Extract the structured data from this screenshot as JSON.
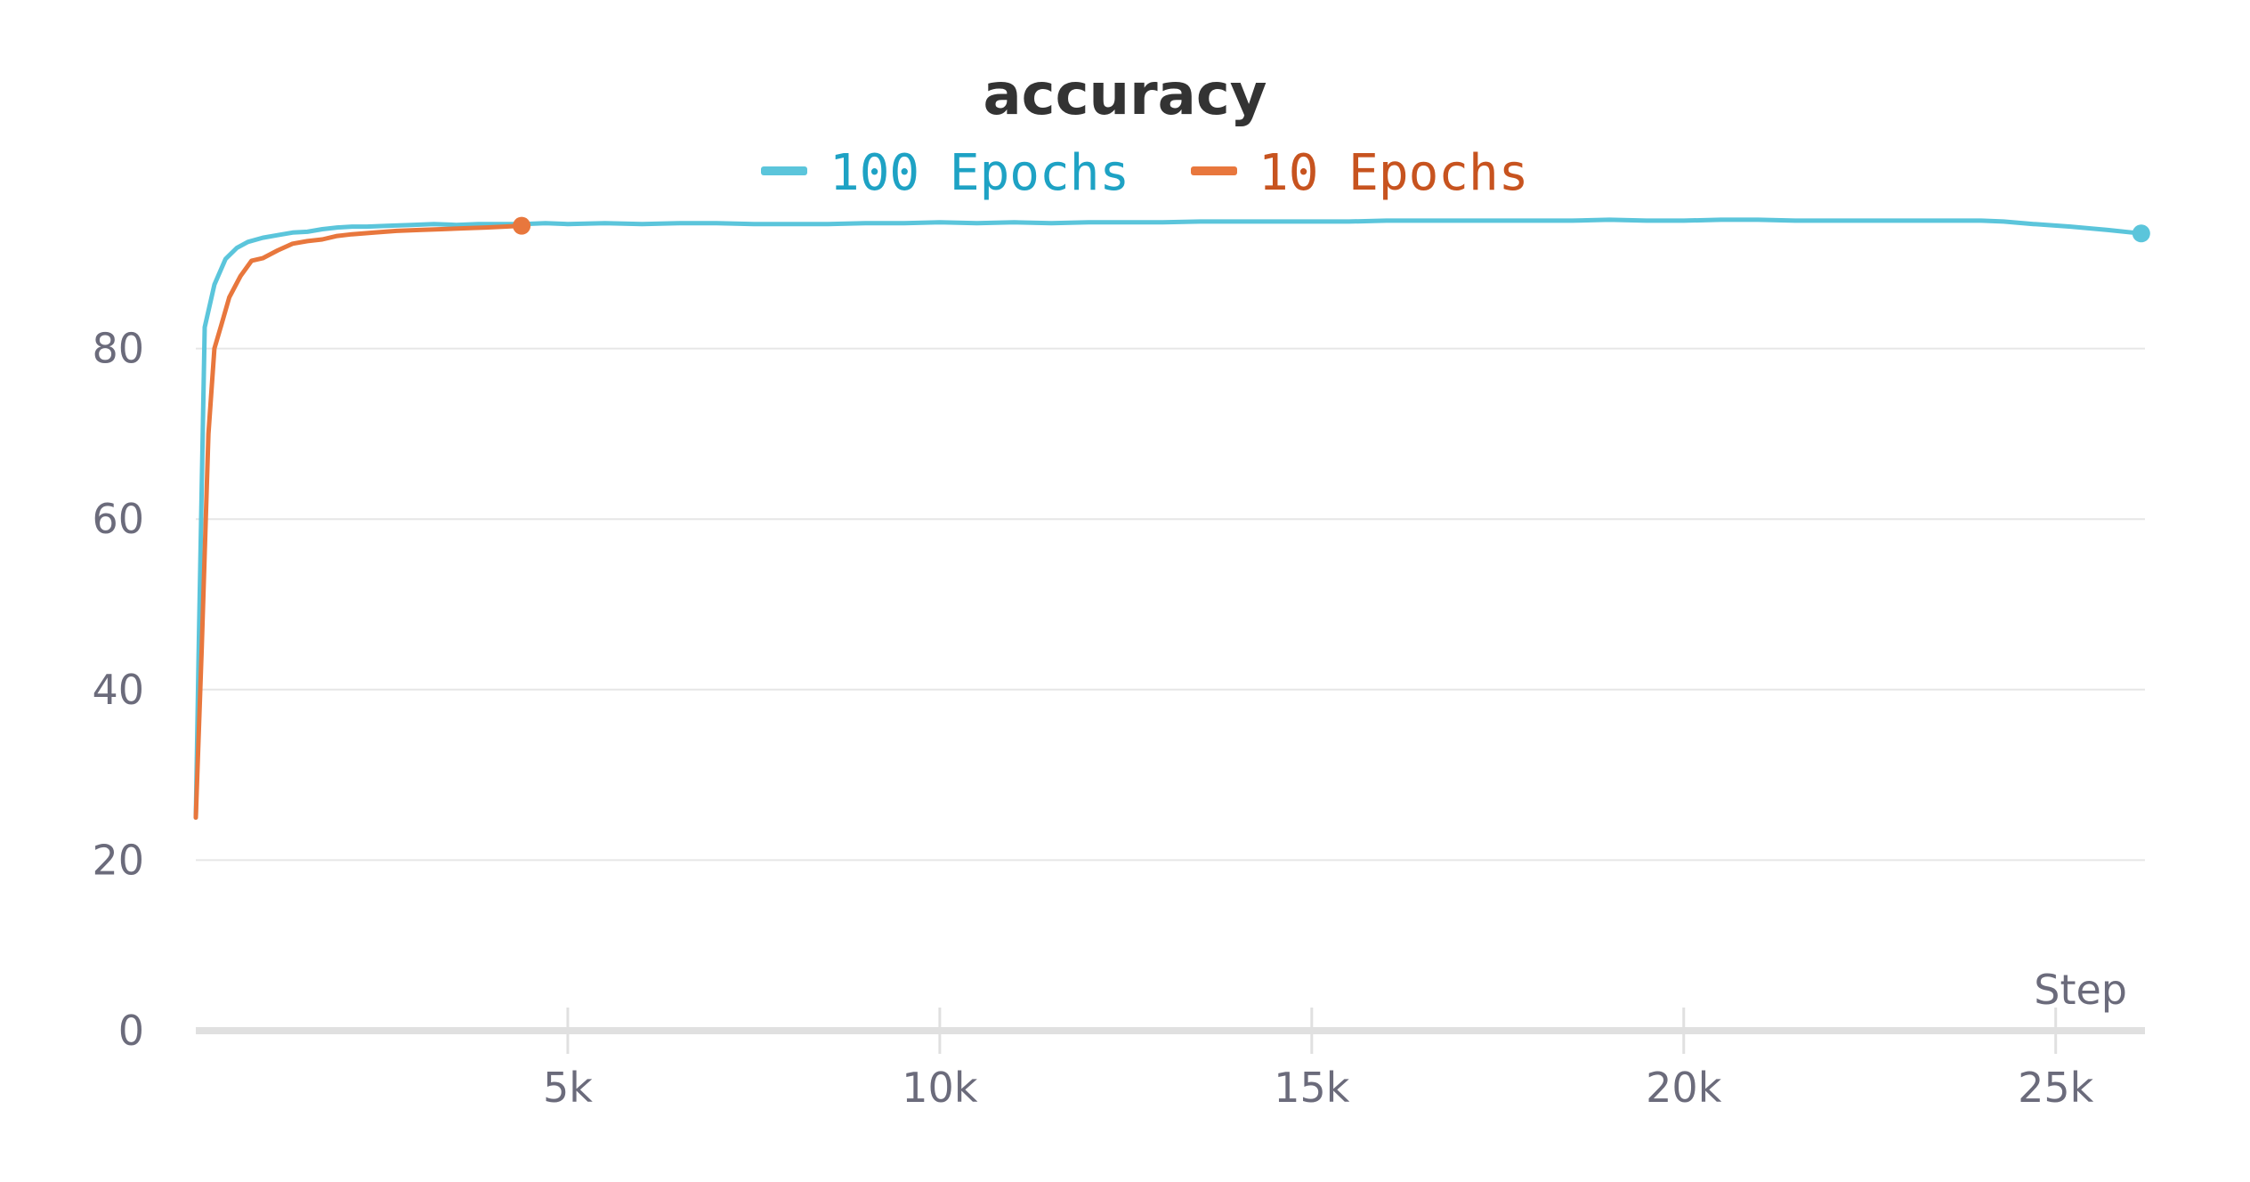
{
  "chart_data": {
    "type": "line",
    "title": "accuracy",
    "xlabel": "Step",
    "ylabel": "",
    "xlim": [
      0,
      26200
    ],
    "ylim": [
      0,
      100
    ],
    "x_ticks": [
      5000,
      10000,
      15000,
      20000,
      25000
    ],
    "x_tick_labels": [
      "5k",
      "10k",
      "15k",
      "20k",
      "25k"
    ],
    "y_ticks": [
      0,
      20,
      40,
      60,
      80
    ],
    "y_tick_labels": [
      "0",
      "20",
      "40",
      "60",
      "80"
    ],
    "grid": true,
    "legend_position": "top-center",
    "series": [
      {
        "name": "100 Epochs",
        "color": "#5bc5db",
        "text_color": "#1ea2c4",
        "points": [
          [
            0,
            25
          ],
          [
            40,
            45
          ],
          [
            120,
            82.5
          ],
          [
            250,
            87.5
          ],
          [
            400,
            90.5
          ],
          [
            550,
            91.8
          ],
          [
            700,
            92.5
          ],
          [
            900,
            93
          ],
          [
            1100,
            93.3
          ],
          [
            1300,
            93.6
          ],
          [
            1500,
            93.7
          ],
          [
            1700,
            94
          ],
          [
            1900,
            94.2
          ],
          [
            2100,
            94.3
          ],
          [
            2300,
            94.3
          ],
          [
            2600,
            94.4
          ],
          [
            2900,
            94.5
          ],
          [
            3200,
            94.6
          ],
          [
            3500,
            94.5
          ],
          [
            3800,
            94.6
          ],
          [
            4100,
            94.6
          ],
          [
            4400,
            94.6
          ],
          [
            4700,
            94.7
          ],
          [
            5000,
            94.6
          ],
          [
            5500,
            94.7
          ],
          [
            6000,
            94.6
          ],
          [
            6500,
            94.7
          ],
          [
            7000,
            94.7
          ],
          [
            7500,
            94.6
          ],
          [
            8000,
            94.6
          ],
          [
            8500,
            94.6
          ],
          [
            9000,
            94.7
          ],
          [
            9500,
            94.7
          ],
          [
            10000,
            94.8
          ],
          [
            10500,
            94.7
          ],
          [
            11000,
            94.8
          ],
          [
            11500,
            94.7
          ],
          [
            12000,
            94.8
          ],
          [
            12500,
            94.8
          ],
          [
            13000,
            94.8
          ],
          [
            13500,
            94.9
          ],
          [
            14000,
            94.9
          ],
          [
            14500,
            94.9
          ],
          [
            15000,
            94.9
          ],
          [
            15500,
            94.9
          ],
          [
            16000,
            95
          ],
          [
            16500,
            95
          ],
          [
            17000,
            95
          ],
          [
            17500,
            95
          ],
          [
            18000,
            95
          ],
          [
            18500,
            95
          ],
          [
            19000,
            95.1
          ],
          [
            19500,
            95
          ],
          [
            20000,
            95
          ],
          [
            20500,
            95.1
          ],
          [
            21000,
            95.1
          ],
          [
            21500,
            95
          ],
          [
            22000,
            95
          ],
          [
            22500,
            95
          ],
          [
            23000,
            95
          ],
          [
            23500,
            95
          ],
          [
            24000,
            95
          ],
          [
            24300,
            94.9
          ],
          [
            24700,
            94.6
          ],
          [
            25200,
            94.3
          ],
          [
            25700,
            93.9
          ],
          [
            26150,
            93.5
          ]
        ]
      },
      {
        "name": "10 Epochs",
        "color": "#e8773d",
        "text_color": "#c7531f",
        "points": [
          [
            0,
            25
          ],
          [
            80,
            45
          ],
          [
            170,
            70
          ],
          [
            250,
            80
          ],
          [
            350,
            83
          ],
          [
            450,
            86
          ],
          [
            600,
            88.5
          ],
          [
            750,
            90.3
          ],
          [
            900,
            90.6
          ],
          [
            1100,
            91.5
          ],
          [
            1300,
            92.3
          ],
          [
            1500,
            92.6
          ],
          [
            1700,
            92.8
          ],
          [
            1900,
            93.2
          ],
          [
            2100,
            93.4
          ],
          [
            2400,
            93.6
          ],
          [
            2700,
            93.8
          ],
          [
            3000,
            93.9
          ],
          [
            3300,
            94
          ],
          [
            3600,
            94.1
          ],
          [
            3900,
            94.2
          ],
          [
            4150,
            94.3
          ],
          [
            4380,
            94.4
          ]
        ]
      }
    ]
  }
}
